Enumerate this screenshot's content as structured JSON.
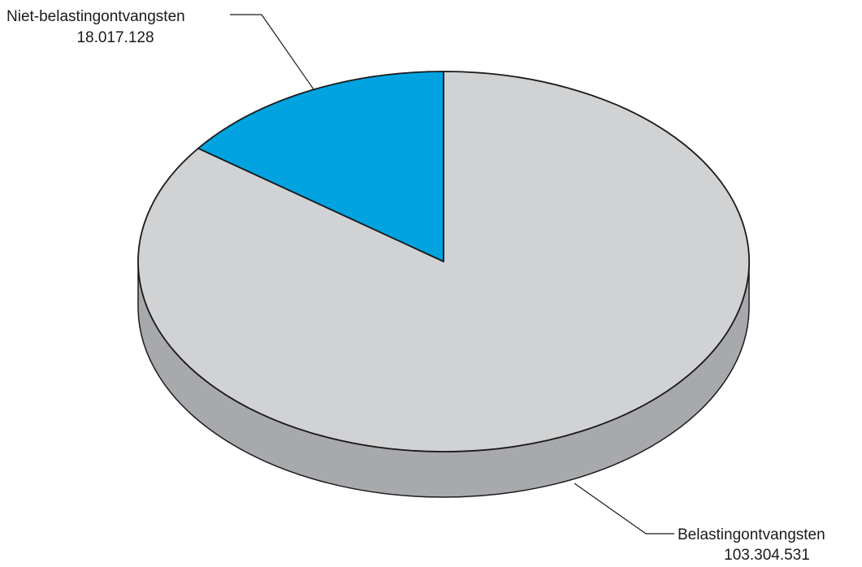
{
  "chart_data": {
    "type": "pie",
    "style": "3d",
    "title": "",
    "slices": [
      {
        "label": "Niet-belastingontvangsten",
        "value_text": "18.017.128",
        "value": 18017128,
        "color": "#00a3e0"
      },
      {
        "label": "Belastingontvangsten",
        "value_text": "103.304.531",
        "value": 103304531,
        "color": "#d1d2d4"
      }
    ],
    "side_color": "#a7a9ac",
    "outline_color": "#1a1a1a",
    "legend": "none"
  }
}
